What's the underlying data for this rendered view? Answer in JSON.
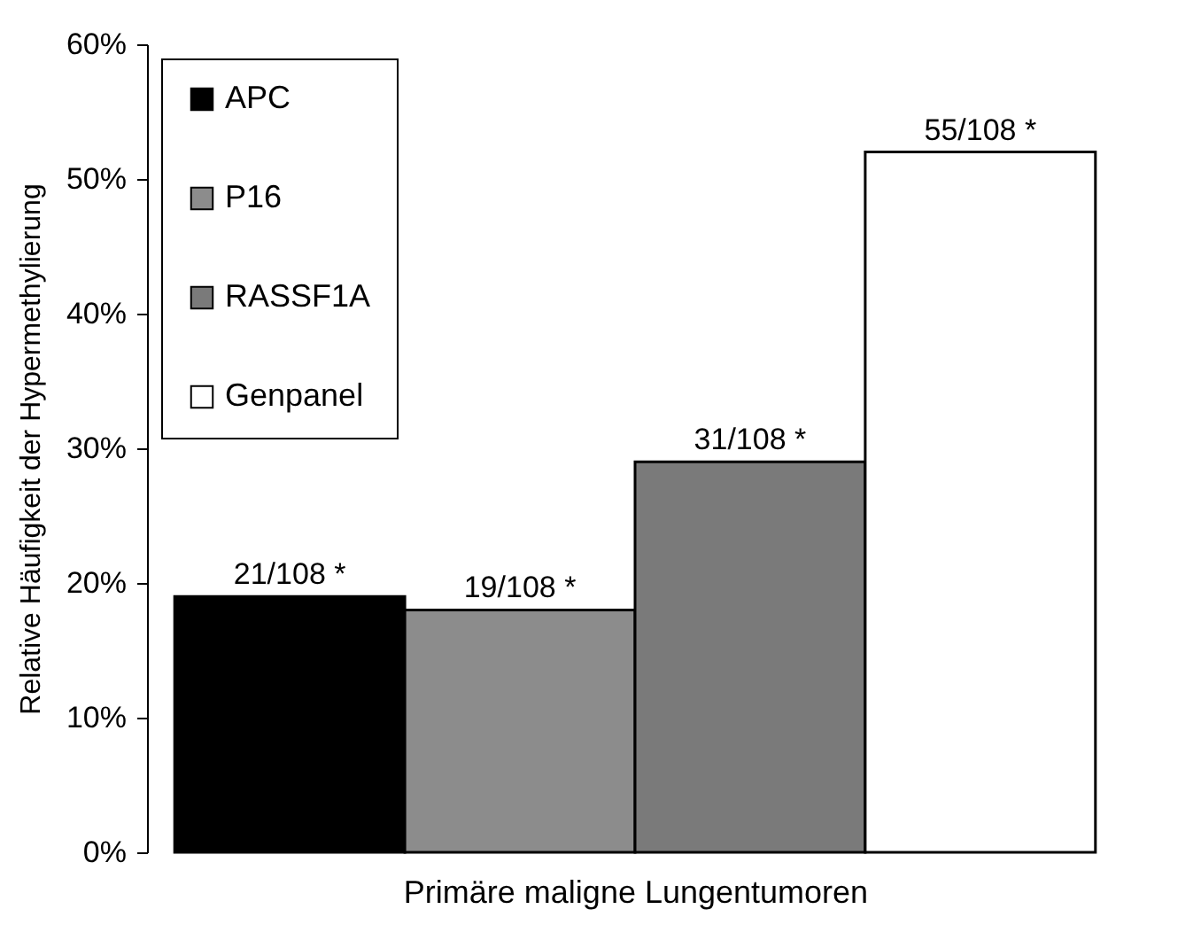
{
  "chart_data": {
    "type": "bar",
    "xlabel": "Primäre maligne Lungentumoren",
    "ylabel": "Relative Häufigkeit der Hypermethylierung",
    "categories": [
      null
    ],
    "series": [
      {
        "name": "APC",
        "color": "#000000",
        "values": [
          19
        ],
        "value_labels": [
          "21/108 *"
        ]
      },
      {
        "name": "P16",
        "color": "#8c8c8c",
        "values": [
          18
        ],
        "value_labels": [
          "19/108 *"
        ]
      },
      {
        "name": "RASSF1A",
        "color": "#7a7a7a",
        "values": [
          29
        ],
        "value_labels": [
          "31/108 *"
        ]
      },
      {
        "name": "Genpanel",
        "color": "#ffffff",
        "values": [
          52
        ],
        "value_labels": [
          "55/108 *"
        ]
      }
    ],
    "ylim": [
      0,
      60
    ],
    "yticks": [
      {
        "value": 0,
        "label": "0%"
      },
      {
        "value": 10,
        "label": "10%"
      },
      {
        "value": 20,
        "label": "20%"
      },
      {
        "value": 30,
        "label": "30%"
      },
      {
        "value": 40,
        "label": "40%"
      },
      {
        "value": 50,
        "label": "50%"
      },
      {
        "value": 60,
        "label": "60%"
      }
    ],
    "grid": false,
    "legend": "top left"
  }
}
